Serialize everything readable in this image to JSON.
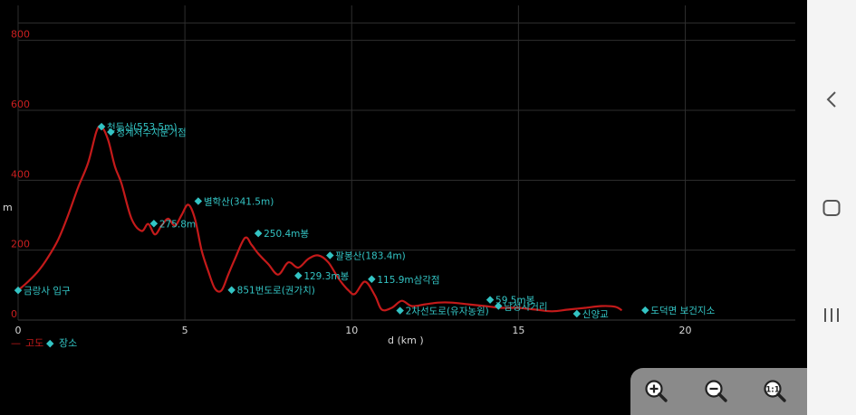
{
  "chart_data": {
    "type": "line",
    "xlabel": "d (km )",
    "ylabel": "m",
    "xlim": [
      0,
      23.3
    ],
    "ylim": [
      0,
      900
    ],
    "x_ticks": [
      "0",
      "5",
      "10",
      "15",
      "20"
    ],
    "y_ticks": [
      "0",
      "200",
      "400",
      "600",
      "800"
    ],
    "grid": true,
    "legend": [
      {
        "marker": "—",
        "label": "고도",
        "color": "#c41a1a"
      },
      {
        "marker": "◆",
        "label": "장소",
        "color": "#33c4c4"
      }
    ],
    "series": [
      {
        "name": "고도",
        "color": "#c41a1a",
        "x": [
          0,
          0.3,
          0.6,
          0.9,
          1.2,
          1.5,
          1.8,
          2.1,
          2.35,
          2.5,
          2.7,
          2.9,
          3.1,
          3.4,
          3.7,
          3.9,
          4.1,
          4.3,
          4.5,
          4.7,
          4.9,
          5.1,
          5.3,
          5.5,
          5.7,
          5.9,
          6.1,
          6.3,
          6.5,
          6.8,
          7.0,
          7.2,
          7.5,
          7.8,
          8.1,
          8.4,
          8.7,
          9.0,
          9.3,
          9.6,
          9.9,
          10.1,
          10.4,
          10.7,
          10.9,
          11.2,
          11.5,
          11.8,
          12.2,
          12.6,
          13.0,
          13.5,
          14.0,
          14.5,
          15.0,
          15.5,
          16.0,
          16.5,
          17.0,
          17.5,
          17.9,
          18.1
        ],
        "y": [
          85,
          110,
          140,
          180,
          230,
          300,
          380,
          450,
          540,
          553,
          515,
          440,
          390,
          290,
          255,
          275,
          245,
          270,
          290,
          270,
          300,
          330,
          290,
          200,
          140,
          90,
          85,
          130,
          175,
          235,
          215,
          190,
          160,
          130,
          165,
          150,
          175,
          185,
          165,
          120,
          85,
          75,
          110,
          70,
          30,
          35,
          55,
          40,
          45,
          50,
          50,
          45,
          40,
          35,
          35,
          30,
          25,
          30,
          35,
          40,
          38,
          28
        ]
      }
    ],
    "places": [
      {
        "label": "금랑사 입구",
        "x": 0,
        "y": 85
      },
      {
        "label": "천등산(553.5m)",
        "x": 2.5,
        "y": 553
      },
      {
        "label": "청계저수지분기점",
        "x": 2.78,
        "y": 538
      },
      {
        "label": "275.8m",
        "x": 4.07,
        "y": 276
      },
      {
        "label": "별학산(341.5m)",
        "x": 5.4,
        "y": 340
      },
      {
        "label": "250.4m봉",
        "x": 7.2,
        "y": 248
      },
      {
        "label": "851번도로(권가치)",
        "x": 6.4,
        "y": 86
      },
      {
        "label": "129.3m봉",
        "x": 8.4,
        "y": 127
      },
      {
        "label": "팔봉산(183.4m)",
        "x": 9.35,
        "y": 185
      },
      {
        "label": "115.9m삼각점",
        "x": 10.6,
        "y": 117
      },
      {
        "label": "2차선도로(유자농원)",
        "x": 11.45,
        "y": 27
      },
      {
        "label": "59.5m봉",
        "x": 14.15,
        "y": 58
      },
      {
        "label": "남성사거리",
        "x": 14.4,
        "y": 40
      },
      {
        "label": "신양교",
        "x": 16.75,
        "y": 18
      },
      {
        "label": "도덕면 보건지소",
        "x": 18.8,
        "y": 28
      }
    ]
  },
  "zoom": {
    "zoom_in_icon": "zoom-in-icon",
    "zoom_out_icon": "zoom-out-icon",
    "zoom_fit_icon": "zoom-fit-icon"
  },
  "nav": {
    "back_icon": "chevron-left-icon",
    "home_icon": "square-home-icon",
    "recents_icon": "recents-lines-icon"
  }
}
